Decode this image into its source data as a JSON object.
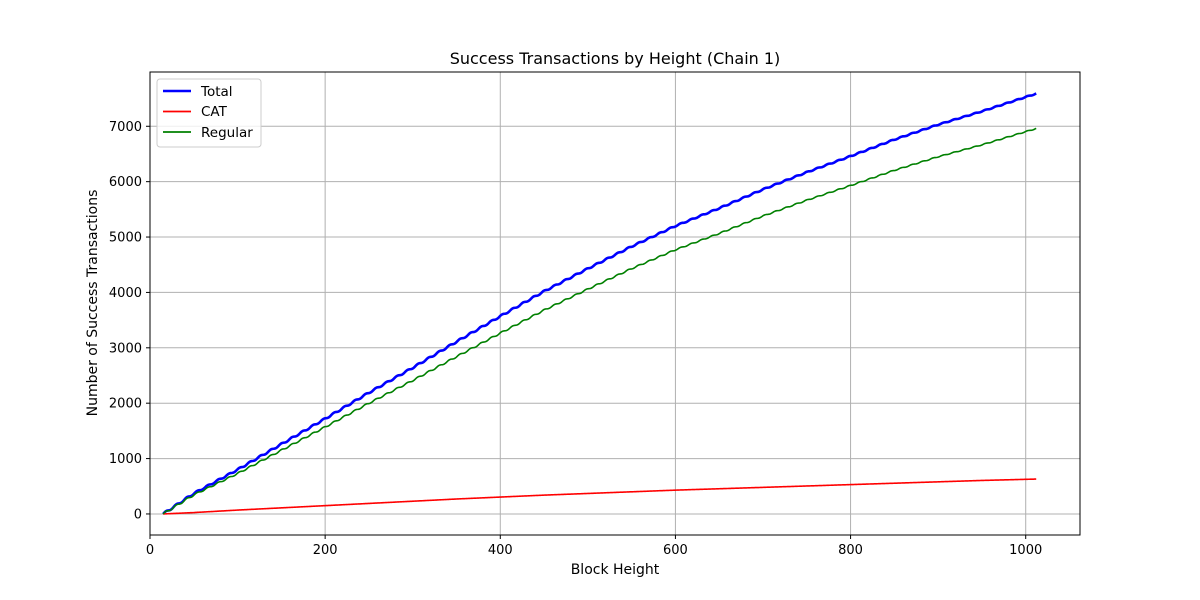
{
  "chart_data": {
    "type": "line",
    "title": "Success Transactions by Height (Chain 1)",
    "xlabel": "Block Height",
    "ylabel": "Number of Success Transactions",
    "xlim": [
      0,
      1062
    ],
    "ylim": [
      -380,
      7980
    ],
    "xticks": [
      0,
      200,
      400,
      600,
      800,
      1000
    ],
    "yticks": [
      0,
      1000,
      2000,
      3000,
      4000,
      5000,
      6000,
      7000
    ],
    "grid": true,
    "legend_position": "top-left",
    "x": [
      15,
      50,
      100,
      150,
      200,
      250,
      300,
      350,
      400,
      450,
      500,
      550,
      600,
      650,
      700,
      750,
      800,
      850,
      900,
      950,
      1012
    ],
    "series": [
      {
        "name": "Total",
        "color": "#0000ff",
        "values": [
          0,
          370,
          800,
          1260,
          1720,
          2190,
          2640,
          3110,
          3570,
          4020,
          4430,
          4830,
          5200,
          5520,
          5860,
          6170,
          6460,
          6760,
          7030,
          7270,
          7590
        ]
      },
      {
        "name": "CAT",
        "color": "#ff0000",
        "values": [
          0,
          25,
          70,
          110,
          150,
          190,
          230,
          270,
          305,
          340,
          370,
          400,
          430,
          455,
          480,
          505,
          530,
          555,
          580,
          605,
          630
        ]
      },
      {
        "name": "Regular",
        "color": "#008000",
        "values": [
          0,
          345,
          730,
          1150,
          1570,
          2000,
          2410,
          2840,
          3265,
          3680,
          4060,
          4430,
          4770,
          5065,
          5380,
          5665,
          5930,
          6205,
          6450,
          6665,
          6960
        ]
      }
    ]
  }
}
